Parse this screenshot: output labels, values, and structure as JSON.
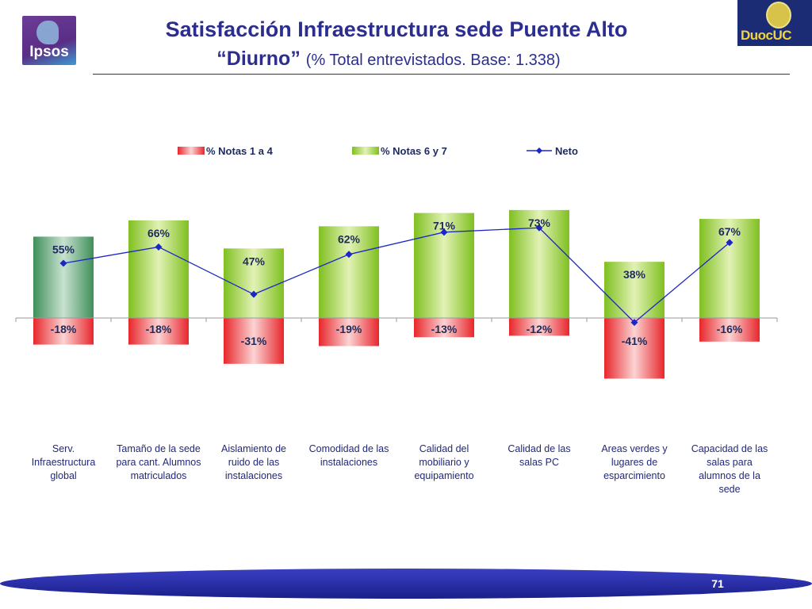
{
  "header": {
    "title_line1": "Satisfacción Infraestructura sede Puente Alto",
    "title_line2": "“Diurno”",
    "title_subtitle": "(% Total entrevistados. Base: 1.338)"
  },
  "logos": {
    "left": "Ipsos",
    "right": "DuocUC"
  },
  "page_number": "71",
  "chart_data": {
    "type": "bar",
    "categories": [
      "Serv. Infraestructura global",
      "Tamaño de la sede para cant. Alumnos matriculados",
      "Aislamiento de ruido de las instalaciones",
      "Comodidad de las instalaciones",
      "Calidad del mobiliario y equipamiento",
      "Calidad de las salas PC",
      "Areas verdes y lugares de esparcimiento",
      "Capacidad de las salas para alumnos de la sede"
    ],
    "category_lines": [
      [
        "Serv.",
        "Infraestructura",
        "global"
      ],
      [
        "Tamaño de la sede",
        "para cant. Alumnos",
        "matriculados"
      ],
      [
        "Aislamiento de",
        "ruido de las",
        "instalaciones"
      ],
      [
        "Comodidad de las",
        "instalaciones"
      ],
      [
        "Calidad del",
        "mobiliario y",
        "equipamiento"
      ],
      [
        "Calidad de las",
        "salas PC"
      ],
      [
        "Areas verdes y",
        "lugares de",
        "esparcimiento"
      ],
      [
        "Capacidad de las",
        "salas para",
        "alumnos de la",
        "sede"
      ]
    ],
    "series": [
      {
        "name": "% Notas 1 a 4",
        "values": [
          -18,
          -18,
          -31,
          -19,
          -13,
          -12,
          -41,
          -16
        ],
        "labels": [
          "-18%",
          "-18%",
          "-31%",
          "-19%",
          "-13%",
          "-12%",
          "-41%",
          "-16%"
        ],
        "color": "#e8262b"
      },
      {
        "name": "% Notas 6 y 7",
        "values": [
          55,
          66,
          47,
          62,
          71,
          73,
          38,
          67
        ],
        "labels": [
          "55%",
          "66%",
          "47%",
          "62%",
          "71%",
          "73%",
          "38%",
          "67%"
        ],
        "color": "#7fbf1f"
      },
      {
        "name": "Neto",
        "values": [
          37,
          48,
          16,
          43,
          58,
          61,
          -3,
          51
        ],
        "color": "#1c27c8"
      }
    ],
    "highlight_first_bar_color": "#3f8f5a",
    "legend_position": "top",
    "ylim": [
      -60,
      90
    ],
    "grid": false
  }
}
